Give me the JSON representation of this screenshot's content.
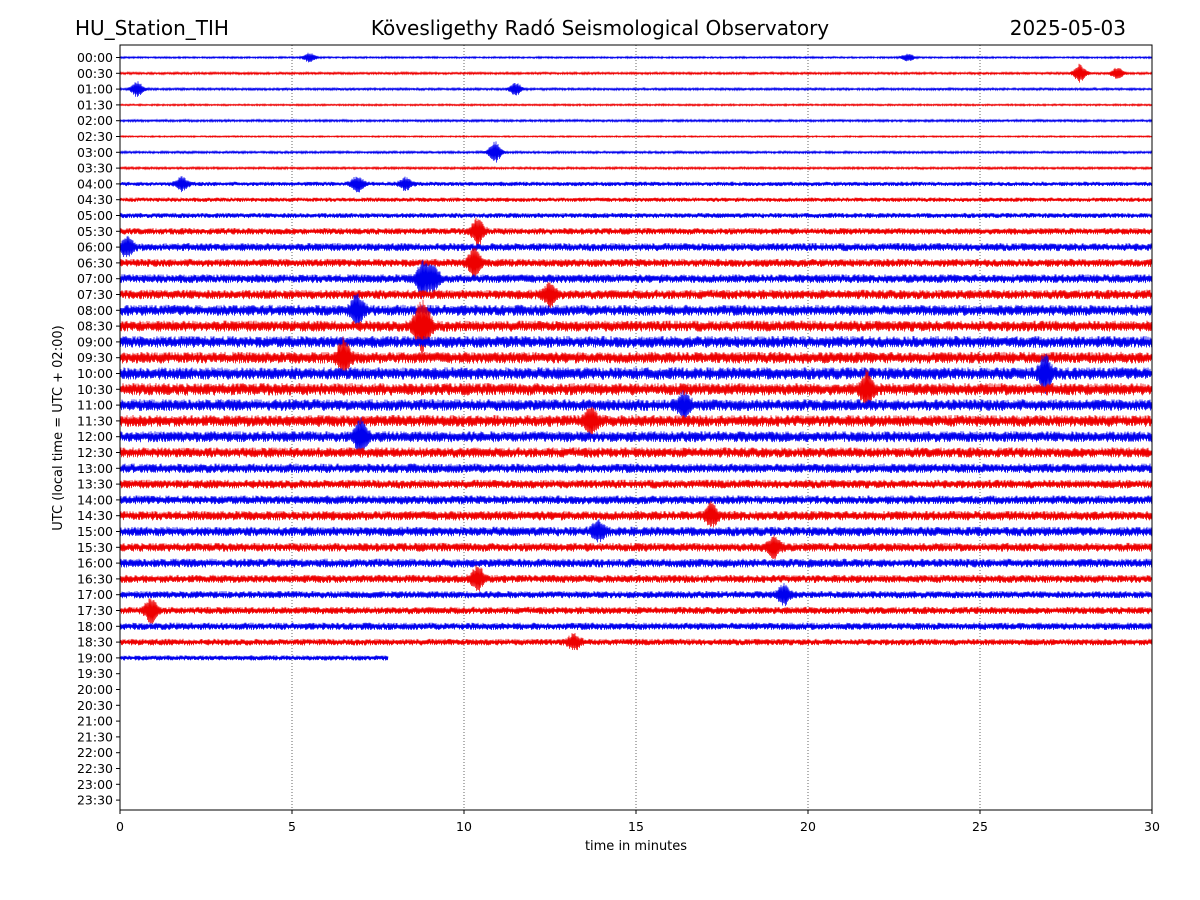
{
  "header": {
    "station": "HU_Station_TIH",
    "title": "Kövesligethy Radó Seismological Observatory",
    "date": "2025-05-03"
  },
  "chart_data": {
    "type": "line",
    "xlabel": "time in minutes",
    "ylabel": "UTC (local time = UTC + 02:00)",
    "xlim": [
      0,
      30
    ],
    "x_ticks": [
      "0",
      "5",
      "10",
      "15",
      "20",
      "25",
      "30"
    ],
    "grid": "vertical dotted",
    "series_colors": [
      "#0000ee",
      "#ee0000"
    ],
    "rows": [
      "00:00",
      "00:30",
      "01:00",
      "01:30",
      "02:00",
      "02:30",
      "03:00",
      "03:30",
      "04:00",
      "04:30",
      "05:00",
      "05:30",
      "06:00",
      "06:30",
      "07:00",
      "07:30",
      "08:00",
      "08:30",
      "09:00",
      "09:30",
      "10:00",
      "10:30",
      "11:00",
      "11:30",
      "12:00",
      "12:30",
      "13:00",
      "13:30",
      "14:00",
      "14:30",
      "15:00",
      "15:30",
      "16:00",
      "16:30",
      "17:00",
      "17:30",
      "18:00",
      "18:30",
      "19:00",
      "19:30",
      "20:00",
      "20:30",
      "21:00",
      "21:30",
      "22:00",
      "22:30",
      "23:00",
      "23:30"
    ],
    "noise_level": [
      0.12,
      0.15,
      0.15,
      0.12,
      0.15,
      0.1,
      0.15,
      0.15,
      0.3,
      0.3,
      0.35,
      0.45,
      0.55,
      0.55,
      0.6,
      0.65,
      0.75,
      0.75,
      0.8,
      0.8,
      0.85,
      0.85,
      0.8,
      0.8,
      0.75,
      0.7,
      0.65,
      0.6,
      0.6,
      0.65,
      0.65,
      0.6,
      0.6,
      0.55,
      0.5,
      0.5,
      0.5,
      0.45,
      0.35,
      0,
      0,
      0,
      0,
      0,
      0,
      0,
      0,
      0
    ],
    "trace_end_minutes": [
      30,
      30,
      30,
      30,
      30,
      30,
      30,
      30,
      30,
      30,
      30,
      30,
      30,
      30,
      30,
      30,
      30,
      30,
      30,
      30,
      30,
      30,
      30,
      30,
      30,
      30,
      30,
      30,
      30,
      30,
      30,
      30,
      30,
      30,
      30,
      30,
      30,
      30,
      7.8,
      0,
      0,
      0,
      0,
      0,
      0,
      0,
      0,
      0
    ],
    "events": [
      {
        "row": "00:00",
        "minute": 5.5,
        "amp": 0.6
      },
      {
        "row": "00:00",
        "minute": 22.9,
        "amp": 0.5
      },
      {
        "row": "00:30",
        "minute": 27.9,
        "amp": 1.2
      },
      {
        "row": "00:30",
        "minute": 29.0,
        "amp": 0.8
      },
      {
        "row": "01:00",
        "minute": 0.5,
        "amp": 1.0
      },
      {
        "row": "01:00",
        "minute": 11.5,
        "amp": 0.8
      },
      {
        "row": "03:00",
        "minute": 10.9,
        "amp": 1.4
      },
      {
        "row": "04:00",
        "minute": 1.8,
        "amp": 0.9
      },
      {
        "row": "04:00",
        "minute": 6.9,
        "amp": 1.0
      },
      {
        "row": "04:00",
        "minute": 8.3,
        "amp": 0.8
      },
      {
        "row": "05:30",
        "minute": 10.4,
        "amp": 1.8
      },
      {
        "row": "06:00",
        "minute": 0.2,
        "amp": 1.2
      },
      {
        "row": "06:30",
        "minute": 10.3,
        "amp": 2.0
      },
      {
        "row": "07:00",
        "minute": 8.8,
        "amp": 2.2
      },
      {
        "row": "07:00",
        "minute": 9.1,
        "amp": 1.6
      },
      {
        "row": "07:30",
        "minute": 12.5,
        "amp": 1.5
      },
      {
        "row": "08:00",
        "minute": 6.9,
        "amp": 2.0
      },
      {
        "row": "08:30",
        "minute": 8.7,
        "amp": 2.6
      },
      {
        "row": "08:30",
        "minute": 8.9,
        "amp": 2.0
      },
      {
        "row": "09:30",
        "minute": 6.5,
        "amp": 2.2
      },
      {
        "row": "10:00",
        "minute": 26.9,
        "amp": 2.2
      },
      {
        "row": "10:30",
        "minute": 21.7,
        "amp": 2.0
      },
      {
        "row": "11:00",
        "minute": 16.4,
        "amp": 1.6
      },
      {
        "row": "11:30",
        "minute": 13.7,
        "amp": 1.6
      },
      {
        "row": "12:00",
        "minute": 7.0,
        "amp": 2.2
      },
      {
        "row": "14:30",
        "minute": 17.2,
        "amp": 1.4
      },
      {
        "row": "15:00",
        "minute": 13.9,
        "amp": 1.2
      },
      {
        "row": "15:30",
        "minute": 19.0,
        "amp": 1.4
      },
      {
        "row": "16:30",
        "minute": 10.4,
        "amp": 1.6
      },
      {
        "row": "17:00",
        "minute": 19.3,
        "amp": 1.2
      },
      {
        "row": "17:30",
        "minute": 0.9,
        "amp": 1.6
      },
      {
        "row": "18:30",
        "minute": 13.2,
        "amp": 1.0
      }
    ]
  }
}
